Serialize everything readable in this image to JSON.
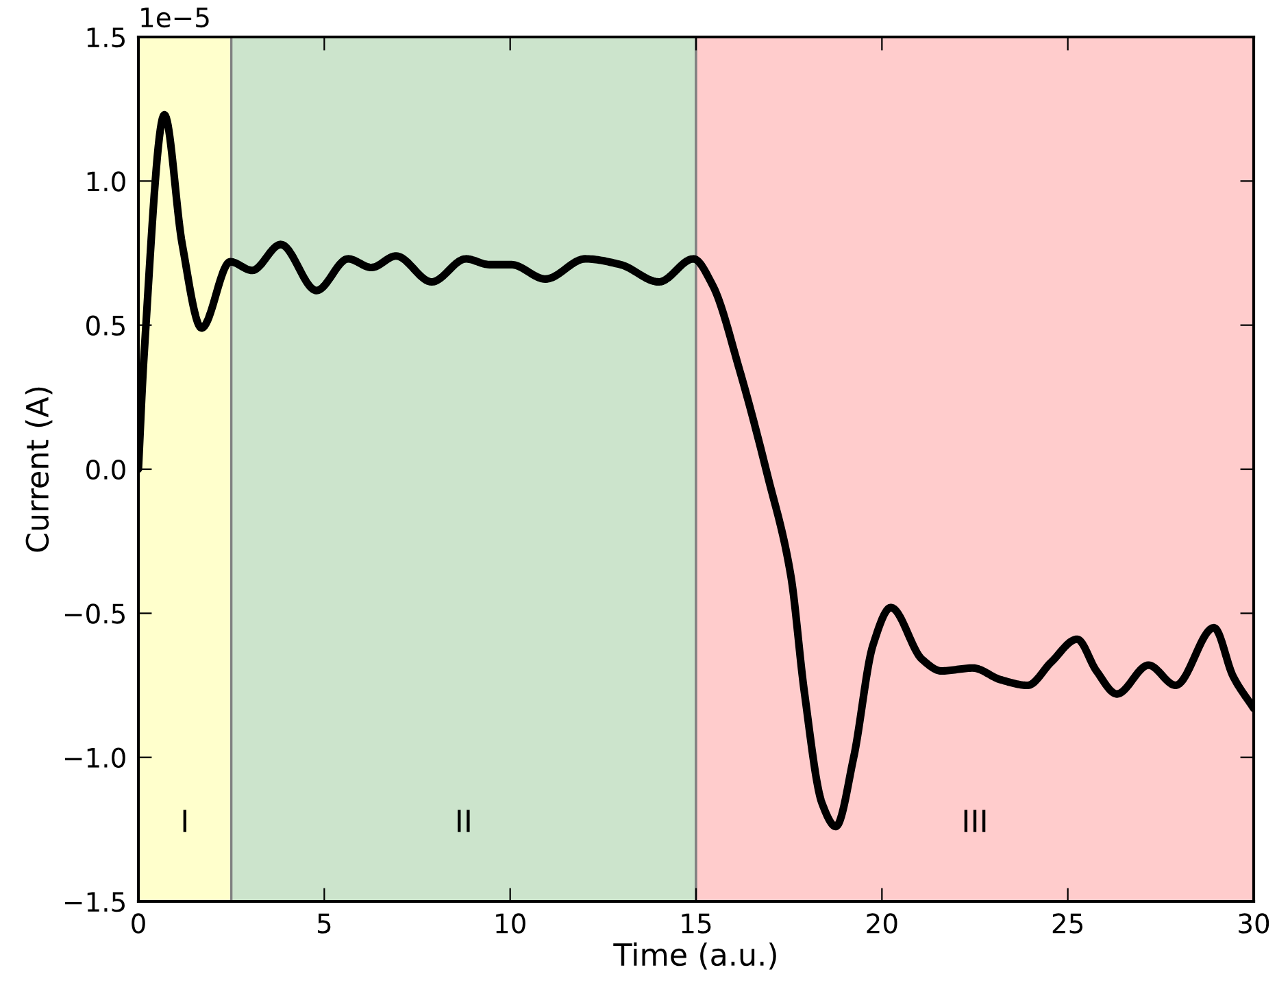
{
  "chart_data": {
    "type": "line",
    "xlabel": "Time (a.u.)",
    "ylabel": "Current (A)",
    "annotations": [
      "1e−5"
    ],
    "x": [
      0,
      0.15,
      0.7,
      1.18,
      1.7,
      2.47,
      3.06,
      3.83,
      4.79,
      5.64,
      6.27,
      6.93,
      7.89,
      8.81,
      9.44,
      10.03,
      10.95,
      12.02,
      12.97,
      14.0,
      14.93,
      15.44,
      16.18,
      16.92,
      17.55,
      17.91,
      18.39,
      18.76,
      19.24,
      19.76,
      20.24,
      21.08,
      21.6,
      22.45,
      23.18,
      23.92,
      24.55,
      25.25,
      25.77,
      26.32,
      27.17,
      27.9,
      28.93,
      29.45,
      30
    ],
    "series": [
      {
        "color": "#000000",
        "values": [
          0,
          0.39,
          1.23,
          0.78,
          0.49,
          0.72,
          0.69,
          0.78,
          0.62,
          0.73,
          0.7,
          0.74,
          0.65,
          0.73,
          0.71,
          0.71,
          0.66,
          0.73,
          0.71,
          0.65,
          0.73,
          0.64,
          0.34,
          -0.02,
          -0.37,
          -0.77,
          -1.16,
          -1.24,
          -1.0,
          -0.61,
          -0.48,
          -0.66,
          -0.7,
          -0.69,
          -0.73,
          -0.75,
          -0.67,
          -0.59,
          -0.7,
          -0.78,
          -0.68,
          -0.75,
          -0.55,
          -0.72,
          -0.83
        ]
      }
    ],
    "xlim": [
      0,
      30
    ],
    "xticks": [
      0,
      5,
      10,
      15,
      20,
      25,
      30
    ],
    "ylim": [
      -1.5,
      1.5
    ],
    "yticks": [
      {
        "value": -1.5,
        "label": "−1.5"
      },
      {
        "value": -1.0,
        "label": "−1.0"
      },
      {
        "value": -0.5,
        "label": "−0.5"
      },
      {
        "value": 0,
        "label": "0.0"
      },
      {
        "value": 0.5,
        "label": "0.5"
      },
      {
        "value": 1.0,
        "label": "1.0"
      },
      {
        "value": 1.5,
        "label": "1.5"
      }
    ],
    "bands": [
      {
        "axis": "x",
        "from": 0,
        "to": 2.5,
        "label": "I",
        "color": "#ffffcc"
      },
      {
        "axis": "x",
        "from": 2.5,
        "to": 15,
        "label": "II",
        "color": "#cce4cc"
      },
      {
        "axis": "x",
        "from": 15,
        "to": 30,
        "label": "III",
        "color": "#ffcccc"
      }
    ],
    "grid": false,
    "line_style": "solid",
    "marker": "none"
  }
}
